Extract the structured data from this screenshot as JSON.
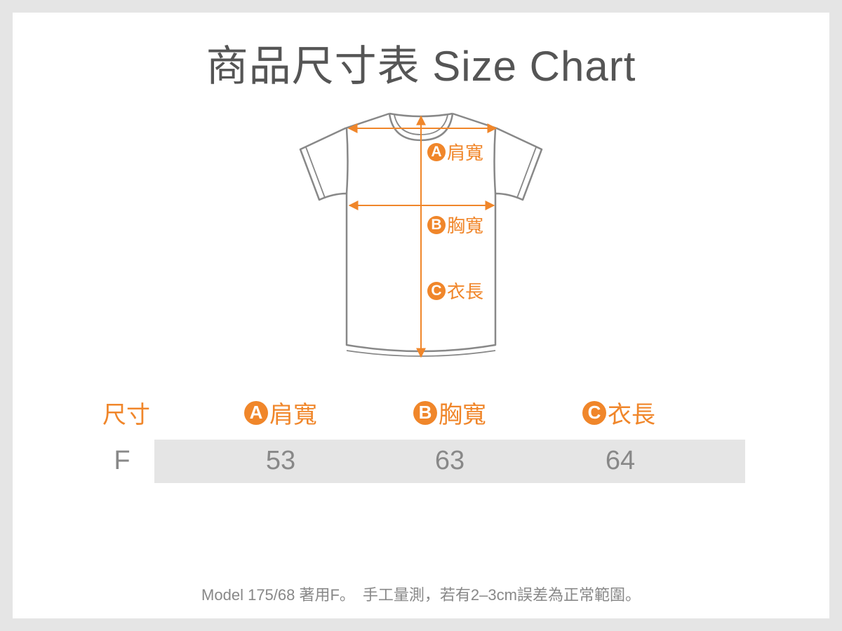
{
  "title": "商品尺寸表 Size Chart",
  "diagram": {
    "labels": [
      {
        "letter": "A",
        "text": "肩寬"
      },
      {
        "letter": "B",
        "text": "胸寬"
      },
      {
        "letter": "C",
        "text": "衣長"
      }
    ]
  },
  "table": {
    "size_header": "尺寸",
    "columns": [
      {
        "letter": "A",
        "text": "肩寬"
      },
      {
        "letter": "B",
        "text": "胸寬"
      },
      {
        "letter": "C",
        "text": "衣長"
      }
    ],
    "rows": [
      {
        "size": "F",
        "values": [
          "53",
          "63",
          "64"
        ]
      }
    ]
  },
  "footer": "Model 175/68 著用F。　手工量測，若有2–3cm誤差為正常範圍。",
  "colors": {
    "accent": "#f0862a",
    "text": "#555555",
    "row_bg": "#e5e5e5"
  }
}
